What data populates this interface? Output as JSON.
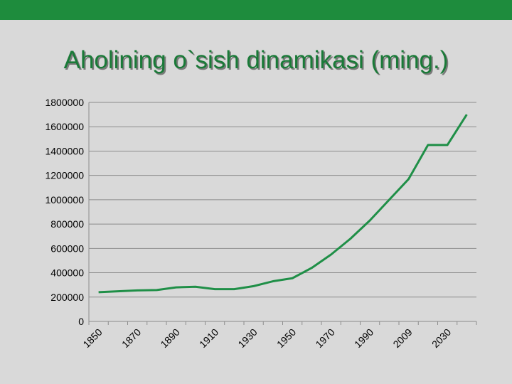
{
  "chart_data": {
    "type": "line",
    "title": "Aholining o`sish dinamikasi (ming.)",
    "categories": [
      "1850",
      null,
      "1870",
      null,
      "1890",
      null,
      "1910",
      null,
      "1930",
      null,
      "1950",
      null,
      "1970",
      null,
      "1990",
      null,
      "2009",
      null,
      "2030",
      null
    ],
    "values": [
      240000,
      248000,
      255000,
      258000,
      280000,
      285000,
      265000,
      265000,
      290000,
      330000,
      355000,
      440000,
      550000,
      680000,
      830000,
      1000000,
      1170000,
      1450000,
      1450000,
      1700000
    ],
    "color": "#1f8f47",
    "ylim": [
      0,
      1800000
    ],
    "yticks": [
      0,
      200000,
      400000,
      600000,
      800000,
      1000000,
      1200000,
      1400000,
      1600000,
      1800000
    ],
    "grid": true
  }
}
